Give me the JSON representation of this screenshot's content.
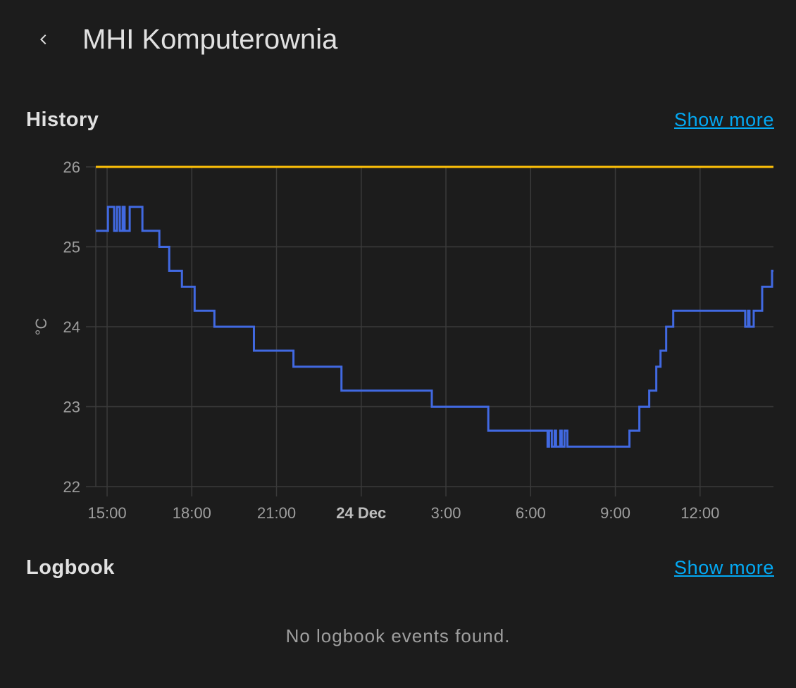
{
  "header": {
    "back_icon": "chevron-left-icon",
    "title": "MHI Komputerownia"
  },
  "history": {
    "title": "History",
    "show_more": "Show more"
  },
  "logbook": {
    "title": "Logbook",
    "show_more": "Show more",
    "empty_message": "No logbook events found."
  },
  "colors": {
    "background": "#1c1c1c",
    "accent_link": "#03a9f4",
    "current_temperature": "#4169e1",
    "target_temperature": "#ffc107",
    "grid": "#3a3a3a"
  },
  "chart_data": {
    "type": "line",
    "step": true,
    "ylabel": "°C",
    "xlabel": "",
    "ylim": [
      22,
      26
    ],
    "yticks": [
      "22",
      "23",
      "24",
      "25",
      "26"
    ],
    "xlim": [
      14.6,
      38.6
    ],
    "xticks": [
      {
        "x": 15,
        "label": "15:00",
        "bold": false
      },
      {
        "x": 18,
        "label": "18:00",
        "bold": false
      },
      {
        "x": 21,
        "label": "21:00",
        "bold": false
      },
      {
        "x": 24,
        "label": "24 Dec",
        "bold": true
      },
      {
        "x": 27,
        "label": "3:00",
        "bold": false
      },
      {
        "x": 30,
        "label": "6:00",
        "bold": false
      },
      {
        "x": 33,
        "label": "9:00",
        "bold": false
      },
      {
        "x": 36,
        "label": "12:00",
        "bold": false
      }
    ],
    "grid": true,
    "series": [
      {
        "color": "#4169e1",
        "points": [
          [
            14.6,
            25.2
          ],
          [
            15.03,
            25.5
          ],
          [
            15.25,
            25.2
          ],
          [
            15.35,
            25.5
          ],
          [
            15.45,
            25.2
          ],
          [
            15.55,
            25.5
          ],
          [
            15.62,
            25.2
          ],
          [
            15.8,
            25.5
          ],
          [
            16.25,
            25.2
          ],
          [
            16.85,
            25.0
          ],
          [
            17.2,
            24.7
          ],
          [
            17.65,
            24.5
          ],
          [
            18.1,
            24.2
          ],
          [
            18.8,
            24.0
          ],
          [
            20.2,
            23.7
          ],
          [
            21.6,
            23.5
          ],
          [
            23.3,
            23.2
          ],
          [
            26.5,
            23.0
          ],
          [
            28.5,
            22.7
          ],
          [
            30.6,
            22.5
          ],
          [
            30.65,
            22.7
          ],
          [
            30.75,
            22.5
          ],
          [
            30.85,
            22.7
          ],
          [
            30.9,
            22.5
          ],
          [
            31.05,
            22.7
          ],
          [
            31.1,
            22.5
          ],
          [
            31.2,
            22.7
          ],
          [
            31.3,
            22.5
          ],
          [
            33.5,
            22.7
          ],
          [
            33.85,
            23.0
          ],
          [
            34.2,
            23.2
          ],
          [
            34.45,
            23.5
          ],
          [
            34.6,
            23.7
          ],
          [
            34.8,
            24.0
          ],
          [
            35.05,
            24.2
          ],
          [
            37.6,
            24.0
          ],
          [
            37.7,
            24.2
          ],
          [
            37.75,
            24.0
          ],
          [
            37.9,
            24.2
          ],
          [
            38.2,
            24.5
          ],
          [
            38.55,
            24.7
          ],
          [
            38.6,
            24.7
          ]
        ]
      },
      {
        "color": "#ffc107",
        "points": [
          [
            14.6,
            26.0
          ],
          [
            38.6,
            26.0
          ]
        ]
      }
    ]
  }
}
